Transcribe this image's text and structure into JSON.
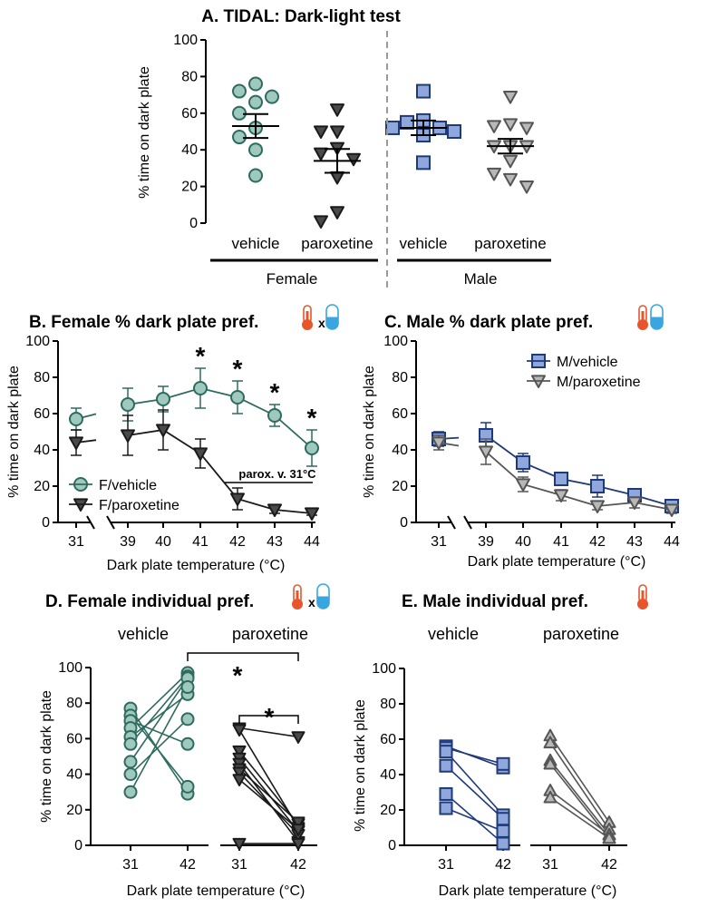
{
  "colors": {
    "teal_fill": "#9fc9be",
    "teal_stroke": "#2e6b5e",
    "dark_fill": "#4a4a4a",
    "dark_stroke": "#1a1a1a",
    "blue_fill": "#8fa7db",
    "blue_stroke": "#1f3a7a",
    "grey_fill": "#b8b8b8",
    "grey_stroke": "#555555",
    "thermo_red": "#e8552a",
    "capsule_blue": "#3aa6e0"
  },
  "chart_data": [
    {
      "id": "A",
      "type": "scatter",
      "title": "A. TIDAL: Dark-light test",
      "ylabel": "% time on dark plate",
      "ylim": [
        0,
        100
      ],
      "yticks": [
        "0",
        "20",
        "40",
        "60",
        "80",
        "100"
      ],
      "groups": [
        {
          "label": "vehicle",
          "sex": "Female",
          "marker": "circle",
          "mean": 53,
          "sem": 6.5,
          "values": [
            76,
            69,
            72,
            66,
            60,
            52,
            47,
            40,
            26
          ]
        },
        {
          "label": "paroxetine",
          "sex": "Female",
          "marker": "triangle-down",
          "mean": 34,
          "sem": 6.5,
          "values": [
            62,
            50,
            50,
            41,
            38,
            35,
            25,
            6,
            1
          ]
        },
        {
          "label": "vehicle",
          "sex": "Male",
          "marker": "square",
          "mean": 52,
          "sem": 4,
          "values": [
            72,
            56,
            55,
            52,
            52,
            50,
            48,
            33
          ]
        },
        {
          "label": "paroxetine",
          "sex": "Male",
          "marker": "triangle-down",
          "mean": 42,
          "sem": 4,
          "values": [
            69,
            54,
            53,
            52,
            42,
            42,
            42,
            34,
            27,
            24,
            20
          ]
        }
      ],
      "sex_labels": [
        "Female",
        "Male"
      ]
    },
    {
      "id": "B",
      "type": "line",
      "title": "B. Female % dark plate pref.",
      "xlabel": "Dark plate temperature (°C)",
      "ylabel": "% time on dark plate",
      "ylim": [
        0,
        100
      ],
      "yticks": [
        "0",
        "20",
        "40",
        "60",
        "80",
        "100"
      ],
      "x": [
        "31",
        "39",
        "40",
        "41",
        "42",
        "43",
        "44"
      ],
      "series": [
        {
          "name": "F/vehicle",
          "marker": "circle",
          "values": [
            57,
            65,
            68,
            74,
            69,
            59,
            41
          ],
          "err": [
            6,
            9,
            7,
            11,
            9,
            6,
            10
          ]
        },
        {
          "name": "F/paroxetine",
          "marker": "triangle-down",
          "values": [
            44,
            48,
            51,
            38,
            13,
            7,
            5
          ],
          "err": [
            7,
            11,
            11,
            8,
            6,
            2,
            1
          ]
        }
      ],
      "stars_at": [
        "41",
        "42",
        "43",
        "44"
      ],
      "star_text": "*",
      "annotation": "parox. v. 31°C"
    },
    {
      "id": "C",
      "type": "line",
      "title": "C. Male % dark plate pref.",
      "xlabel": "Dark plate temperature (°C)",
      "ylabel": "% time on dark plate",
      "ylim": [
        0,
        100
      ],
      "yticks": [
        "0",
        "20",
        "40",
        "60",
        "80",
        "100"
      ],
      "x": [
        "31",
        "39",
        "40",
        "41",
        "42",
        "43",
        "44"
      ],
      "series": [
        {
          "name": "M/vehicle",
          "marker": "square",
          "values": [
            46,
            48,
            33,
            24,
            20,
            15,
            9
          ],
          "err": [
            4,
            7,
            5,
            3,
            6,
            3,
            2
          ]
        },
        {
          "name": "M/paroxetine",
          "marker": "triangle-down",
          "values": [
            44,
            39,
            21,
            15,
            9,
            11,
            7
          ],
          "err": [
            4,
            7,
            4,
            3,
            2,
            3,
            2
          ]
        }
      ]
    },
    {
      "id": "D",
      "type": "line",
      "title": "D. Female individual pref.",
      "xlabel": "Dark plate temperature (°C)",
      "ylabel": "% time on dark plate",
      "ylim": [
        0,
        100
      ],
      "yticks": [
        "0",
        "20",
        "40",
        "60",
        "80",
        "100"
      ],
      "x": [
        "31",
        "42"
      ],
      "group_labels": [
        "vehicle",
        "paroxetine"
      ],
      "vehicle_pairs": [
        [
          77,
          29
        ],
        [
          73,
          33
        ],
        [
          70,
          57
        ],
        [
          66,
          97
        ],
        [
          61,
          85
        ],
        [
          57,
          95
        ],
        [
          47,
          94
        ],
        [
          40,
          71
        ],
        [
          30,
          89
        ]
      ],
      "paroxetine_pairs": [
        [
          66,
          61
        ],
        [
          65,
          10
        ],
        [
          53,
          12
        ],
        [
          49,
          8
        ],
        [
          46,
          2
        ],
        [
          43,
          13
        ],
        [
          41,
          6
        ],
        [
          37,
          9
        ],
        [
          1,
          1
        ]
      ],
      "star_text": "*"
    },
    {
      "id": "E",
      "type": "line",
      "title": "E. Male individual pref.",
      "xlabel": "Dark plate temperature (°C)",
      "ylabel": "% time on dark plate",
      "ylim": [
        0,
        100
      ],
      "yticks": [
        "0",
        "20",
        "40",
        "60",
        "80",
        "100"
      ],
      "x": [
        "31",
        "42"
      ],
      "group_labels": [
        "vehicle",
        "paroxetine"
      ],
      "vehicle_pairs": [
        [
          56,
          44
        ],
        [
          55,
          46
        ],
        [
          53,
          17
        ],
        [
          45,
          15
        ],
        [
          29,
          1
        ],
        [
          21,
          8
        ]
      ],
      "paroxetine_pairs": [
        [
          62,
          13
        ],
        [
          58,
          9
        ],
        [
          48,
          6
        ],
        [
          46,
          4
        ],
        [
          31,
          6
        ],
        [
          27,
          4
        ]
      ]
    }
  ]
}
